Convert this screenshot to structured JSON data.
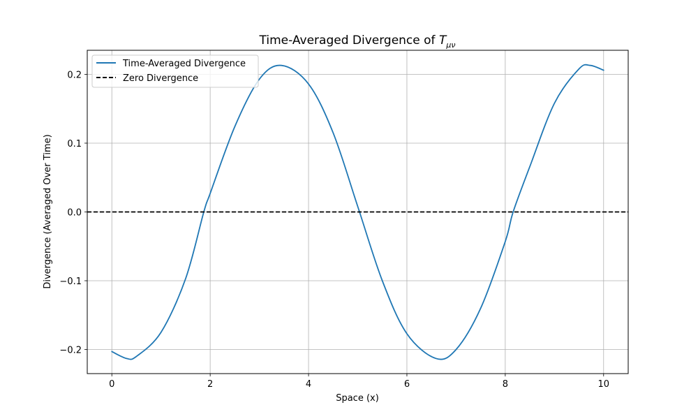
{
  "chart_data": {
    "type": "line",
    "title": "Time-Averaged Divergence of ",
    "title_math": "T",
    "title_math_sub": "μν",
    "xlabel": "Space (x)",
    "ylabel": "Divergence (Averaged Over Time)",
    "xlim": [
      -0.5,
      10.5
    ],
    "ylim": [
      -0.235,
      0.235
    ],
    "xticks": [
      0,
      2,
      4,
      6,
      8,
      10
    ],
    "xtick_labels": [
      "0",
      "2",
      "4",
      "6",
      "8",
      "10"
    ],
    "yticks": [
      -0.2,
      -0.1,
      0.0,
      0.1,
      0.2
    ],
    "ytick_labels": [
      "−0.2",
      "−0.1",
      "0.0",
      "0.1",
      "0.2"
    ],
    "grid": true,
    "legend_position": "top-left",
    "series": [
      {
        "name": "Time-Averaged Divergence",
        "color": "#1f77b4",
        "style": "solid",
        "x": [
          0.0,
          0.3,
          0.5,
          1.0,
          1.5,
          1.87,
          2.0,
          2.5,
          3.0,
          3.45,
          4.0,
          4.5,
          5.0,
          5.5,
          6.0,
          6.59,
          7.0,
          7.5,
          8.0,
          8.16,
          8.5,
          9.0,
          9.5,
          9.73,
          10.0
        ],
        "y": [
          -0.203,
          -0.213,
          -0.21,
          -0.175,
          -0.097,
          0.0,
          0.027,
          0.124,
          0.193,
          0.213,
          0.186,
          0.115,
          0.008,
          -0.1,
          -0.177,
          -0.213,
          -0.2,
          -0.14,
          -0.043,
          0.0,
          0.066,
          0.158,
          0.208,
          0.213,
          0.206
        ]
      },
      {
        "name": "Zero Divergence",
        "color": "#000000",
        "style": "dashed",
        "x": [
          -0.5,
          10.5
        ],
        "y": [
          0.0,
          0.0
        ]
      }
    ]
  }
}
